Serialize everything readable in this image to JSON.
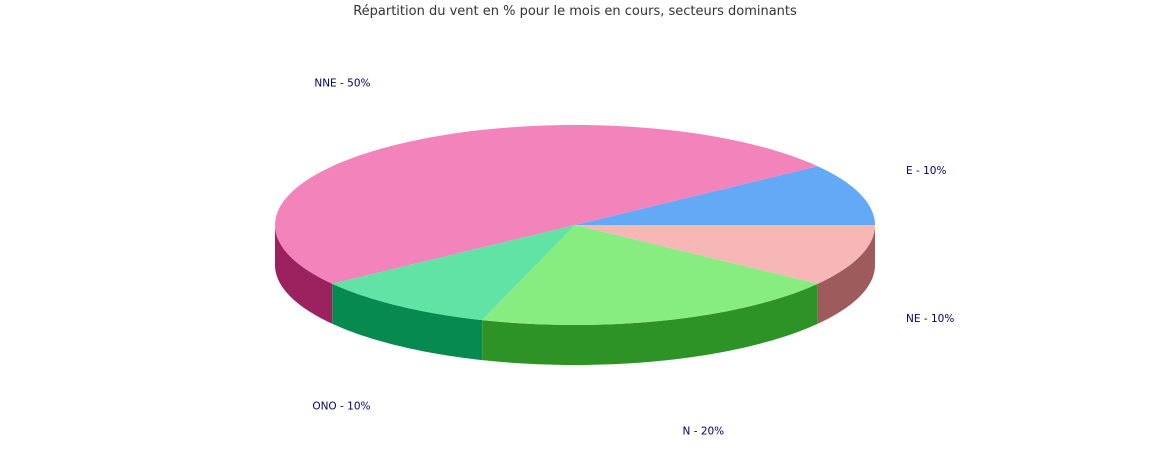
{
  "chart_data": {
    "type": "pie",
    "title": "Répartition du vent en % pour le mois en cours, secteurs dominants",
    "label_color": "#000066",
    "slices": [
      {
        "label": "E - 10%",
        "value": 10,
        "top_color": "#63a9f5",
        "side_color": "#3b6fa8"
      },
      {
        "label": "NNE - 50%",
        "value": 50,
        "top_color": "#f283bb",
        "side_color": "#9b225e"
      },
      {
        "label": "ONO - 10%",
        "value": 10,
        "top_color": "#61e3a6",
        "side_color": "#068a4f"
      },
      {
        "label": "N - 20%",
        "value": 20,
        "top_color": "#87ed80",
        "side_color": "#2e9327"
      },
      {
        "label": "NE - 10%",
        "value": 10,
        "top_color": "#f7b7b7",
        "side_color": "#9e5b5b"
      }
    ]
  }
}
